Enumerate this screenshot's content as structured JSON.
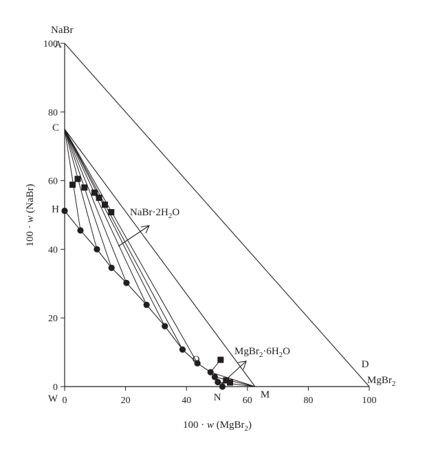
{
  "chart_data": {
    "type": "scatter",
    "x_title_prefix": "100 · ",
    "x_title_var": "w",
    "x_title_open": " (MgBr",
    "x_title_sub": "2",
    "x_title_close": ")",
    "y_title_prefix": "100 · ",
    "y_title_var": "w",
    "y_title_rest": " (NaBr)",
    "xlim": [
      0,
      100
    ],
    "ylim": [
      0,
      100
    ],
    "x_ticks": [
      0,
      20,
      40,
      60,
      80,
      100
    ],
    "y_ticks": [
      0,
      20,
      40,
      60,
      80,
      100
    ],
    "top_axis_label": "NaBr",
    "corner_points": [
      {
        "label": "A",
        "x": 0,
        "y": 100
      },
      {
        "label": "C",
        "x": 0,
        "y": 75
      },
      {
        "label": "H",
        "x": 0,
        "y": 51.2
      },
      {
        "label": "W",
        "x": 0,
        "y": 0
      },
      {
        "label": "Q",
        "x": 48,
        "y": 4.2
      },
      {
        "label": "N",
        "x": 51.5,
        "y": 0
      },
      {
        "label": "M",
        "x": 62.5,
        "y": 0
      },
      {
        "label": "D",
        "x": 100,
        "y": 0
      }
    ],
    "right_label": "MgBr",
    "right_label_sub": "2",
    "compound_nabr": {
      "text": "NaBr·2H",
      "sub": "2",
      "tail": "O"
    },
    "compound_mgbr": {
      "text": "MgBr",
      "sub1": "2",
      "mid": "·6H",
      "sub2": "2",
      "tail": "O"
    },
    "liquid_points": [
      {
        "x": 0,
        "y": 51.2
      },
      {
        "x": 5.2,
        "y": 45.5
      },
      {
        "x": 10.6,
        "y": 40.0
      },
      {
        "x": 15.4,
        "y": 34.6
      },
      {
        "x": 20.3,
        "y": 30.2
      },
      {
        "x": 26.9,
        "y": 23.8
      },
      {
        "x": 32.9,
        "y": 17.6
      },
      {
        "x": 38.7,
        "y": 10.8
      },
      {
        "x": 43.6,
        "y": 6.8
      },
      {
        "x": 47.9,
        "y": 4.2
      },
      {
        "x": 49.3,
        "y": 2.8
      },
      {
        "x": 50.3,
        "y": 1.3
      },
      {
        "x": 51.8,
        "y": 0
      }
    ],
    "wet_residue_points": [
      {
        "x": 2.6,
        "y": 58.8
      },
      {
        "x": 4.3,
        "y": 60.5
      },
      {
        "x": 6.5,
        "y": 58.0
      },
      {
        "x": 9.8,
        "y": 56.5
      },
      {
        "x": 11.3,
        "y": 55.0
      },
      {
        "x": 13.2,
        "y": 53.0
      },
      {
        "x": 15.3,
        "y": 50.8
      },
      {
        "x": 51.2,
        "y": 7.8
      },
      {
        "x": 53.0,
        "y": 1.8
      },
      {
        "x": 54.3,
        "y": 1.2
      }
    ]
  }
}
